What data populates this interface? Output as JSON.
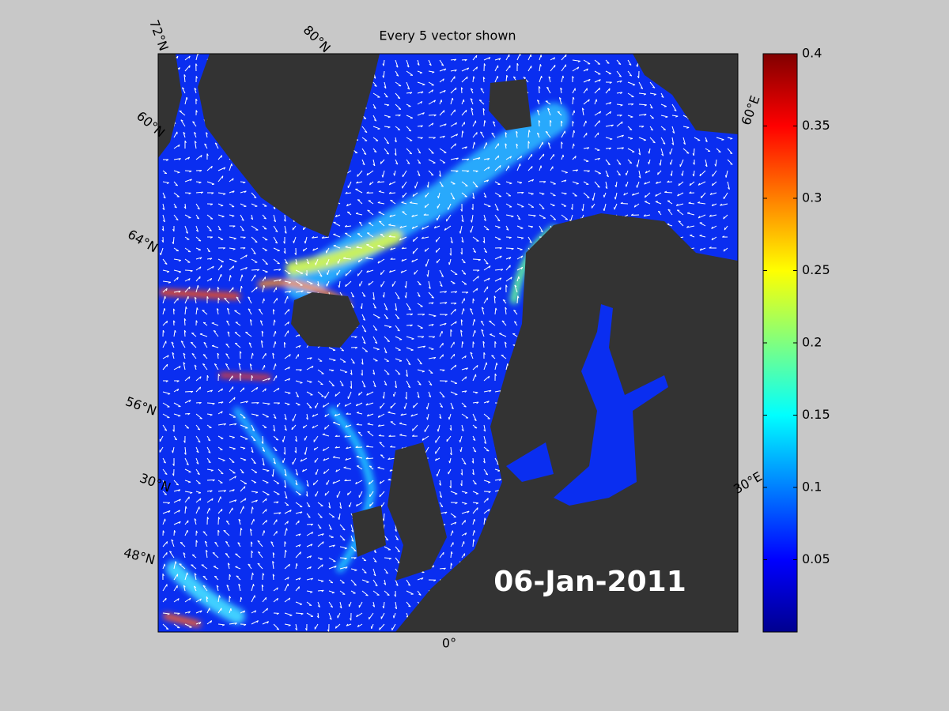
{
  "map": {
    "title": "Every 5 vector shown",
    "date_label": "06-Jan-2011",
    "graticule_labels": [
      "72°N",
      "80°N",
      "60°E",
      "60°N",
      "64°N",
      "56°N",
      "30°N",
      "30°E",
      "48°N",
      "0°"
    ],
    "colorbar": {
      "range": [
        0,
        0.4
      ],
      "ticks": [
        0.05,
        0.1,
        0.15,
        0.2,
        0.25,
        0.3,
        0.35,
        0.4
      ]
    }
  }
}
